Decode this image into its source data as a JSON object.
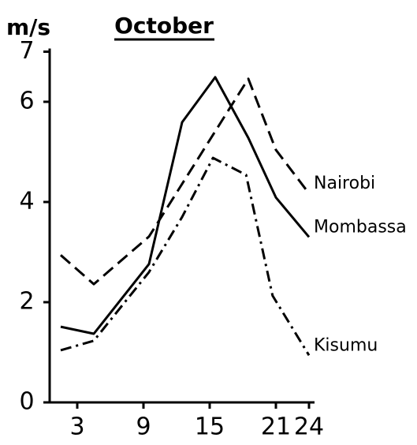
{
  "chart_data": {
    "type": "line",
    "title": "October",
    "y_label": "m/s",
    "xlim": [
      0.5,
      24.5
    ],
    "xticks": [
      3,
      9,
      15,
      21,
      24
    ],
    "ylim": [
      0,
      7
    ],
    "yticks": [
      0,
      2,
      4,
      6,
      7
    ],
    "series": [
      {
        "name": "Nairobi",
        "color": "#000000",
        "dash": "dashed",
        "x": [
          1.5,
          4.5,
          9.5,
          18.5,
          21,
          24
        ],
        "values": [
          2.94,
          2.36,
          3.31,
          6.46,
          5.04,
          4.17
        ]
      },
      {
        "name": "Mombassa",
        "color": "#000000",
        "dash": "solid",
        "x": [
          1.5,
          4.5,
          9.5,
          12.5,
          15.5,
          18.5,
          21,
          24
        ],
        "values": [
          1.51,
          1.37,
          2.76,
          5.59,
          6.49,
          5.28,
          4.09,
          3.3
        ]
      },
      {
        "name": "Kisumu",
        "color": "#000000",
        "dash": "dashdot",
        "x": [
          1.5,
          4.5,
          9.5,
          12.5,
          15.3,
          18.3,
          20.7,
          24
        ],
        "values": [
          1.04,
          1.23,
          2.6,
          3.7,
          4.88,
          4.54,
          2.13,
          0.94
        ]
      }
    ]
  }
}
